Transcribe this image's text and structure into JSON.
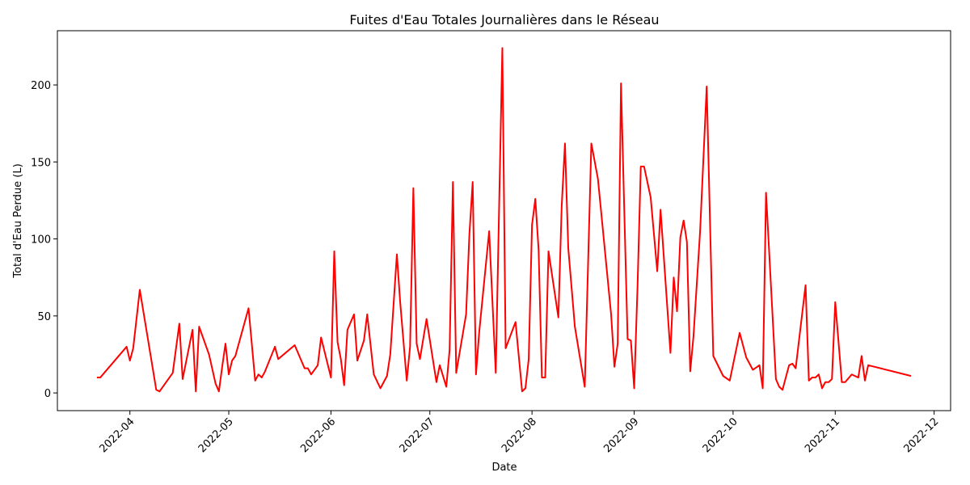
{
  "chart_data": {
    "type": "line",
    "title": "Fuites d'Eau Totales Journalières dans le Réseau",
    "xlabel": "Date",
    "ylabel": "Total d'Eau Perdue (L)",
    "x": [
      "2022-03-22",
      "2022-03-23",
      "2022-03-31",
      "2022-04-01",
      "2022-04-02",
      "2022-04-04",
      "2022-04-09",
      "2022-04-10",
      "2022-04-14",
      "2022-04-16",
      "2022-04-17",
      "2022-04-20",
      "2022-04-21",
      "2022-04-22",
      "2022-04-25",
      "2022-04-27",
      "2022-04-28",
      "2022-04-29",
      "2022-04-30",
      "2022-05-01",
      "2022-05-02",
      "2022-05-03",
      "2022-05-07",
      "2022-05-09",
      "2022-05-10",
      "2022-05-11",
      "2022-05-12",
      "2022-05-15",
      "2022-05-16",
      "2022-05-21",
      "2022-05-24",
      "2022-05-25",
      "2022-05-26",
      "2022-05-28",
      "2022-05-29",
      "2022-06-01",
      "2022-06-02",
      "2022-06-03",
      "2022-06-04",
      "2022-06-05",
      "2022-06-06",
      "2022-06-08",
      "2022-06-09",
      "2022-06-11",
      "2022-06-12",
      "2022-06-14",
      "2022-06-16",
      "2022-06-18",
      "2022-06-19",
      "2022-06-21",
      "2022-06-22",
      "2022-06-24",
      "2022-06-25",
      "2022-06-26",
      "2022-06-27",
      "2022-06-28",
      "2022-06-30",
      "2022-07-03",
      "2022-07-04",
      "2022-07-06",
      "2022-07-07",
      "2022-07-08",
      "2022-07-09",
      "2022-07-12",
      "2022-07-13",
      "2022-07-14",
      "2022-07-15",
      "2022-07-16",
      "2022-07-19",
      "2022-07-21",
      "2022-07-23",
      "2022-07-24",
      "2022-07-27",
      "2022-07-29",
      "2022-07-30",
      "2022-07-31",
      "2022-08-01",
      "2022-08-02",
      "2022-08-03",
      "2022-08-04",
      "2022-08-05",
      "2022-08-06",
      "2022-08-09",
      "2022-08-10",
      "2022-08-11",
      "2022-08-12",
      "2022-08-14",
      "2022-08-17",
      "2022-08-19",
      "2022-08-21",
      "2022-08-25",
      "2022-08-26",
      "2022-08-27",
      "2022-08-28",
      "2022-08-30",
      "2022-08-31",
      "2022-09-01",
      "2022-09-02",
      "2022-09-03",
      "2022-09-04",
      "2022-09-06",
      "2022-09-08",
      "2022-09-09",
      "2022-09-12",
      "2022-09-13",
      "2022-09-14",
      "2022-09-15",
      "2022-09-16",
      "2022-09-17",
      "2022-09-18",
      "2022-09-19",
      "2022-09-21",
      "2022-09-23",
      "2022-09-25",
      "2022-09-28",
      "2022-09-30",
      "2022-10-03",
      "2022-10-05",
      "2022-10-07",
      "2022-10-09",
      "2022-10-10",
      "2022-10-11",
      "2022-10-14",
      "2022-10-15",
      "2022-10-16",
      "2022-10-18",
      "2022-10-19",
      "2022-10-20",
      "2022-10-23",
      "2022-10-24",
      "2022-10-25",
      "2022-10-26",
      "2022-10-27",
      "2022-10-28",
      "2022-10-29",
      "2022-10-30",
      "2022-10-31",
      "2022-11-01",
      "2022-11-03",
      "2022-11-04",
      "2022-11-06",
      "2022-11-08",
      "2022-11-09",
      "2022-11-10",
      "2022-11-11",
      "2022-11-24"
    ],
    "series": [
      {
        "name": "Total d'Eau Perdue (L)",
        "color": "#ff0000",
        "values": [
          10,
          10,
          30,
          21,
          29,
          67,
          2,
          1,
          13,
          45,
          9,
          41,
          1,
          43,
          25,
          6,
          1,
          17,
          32,
          12,
          21,
          24,
          55,
          8,
          12,
          10,
          14,
          30,
          22,
          31,
          16,
          16,
          12,
          18,
          36,
          10,
          92,
          33,
          22,
          5,
          41,
          51,
          21,
          34,
          51,
          12,
          3,
          11,
          25,
          90,
          59,
          8,
          30,
          133,
          32,
          22,
          48,
          7,
          18,
          4,
          28,
          137,
          13,
          51,
          103,
          137,
          12,
          40,
          105,
          13,
          224,
          29,
          46,
          1,
          3,
          22,
          109,
          126,
          93,
          10,
          10,
          92,
          49,
          121,
          162,
          94,
          43,
          4,
          162,
          139,
          51,
          17,
          32,
          201,
          35,
          34,
          3,
          68,
          147,
          147,
          127,
          79,
          119,
          26,
          75,
          53,
          101,
          112,
          98,
          14,
          37,
          105,
          199,
          24,
          11,
          8,
          39,
          23,
          15,
          18,
          3,
          130,
          9,
          4,
          2,
          18,
          19,
          16,
          70,
          8,
          10,
          10,
          12,
          3,
          7,
          7,
          9,
          59,
          7,
          7,
          12,
          10,
          24,
          8,
          18,
          11
        ]
      }
    ],
    "xlim": [
      "2022-03-10",
      "2022-12-06"
    ],
    "xticks": [
      {
        "value": "2022-04-01",
        "label": "2022-04"
      },
      {
        "value": "2022-05-01",
        "label": "2022-05"
      },
      {
        "value": "2022-06-01",
        "label": "2022-06"
      },
      {
        "value": "2022-07-01",
        "label": "2022-07"
      },
      {
        "value": "2022-08-01",
        "label": "2022-08"
      },
      {
        "value": "2022-09-01",
        "label": "2022-09"
      },
      {
        "value": "2022-10-01",
        "label": "2022-10"
      },
      {
        "value": "2022-11-01",
        "label": "2022-11"
      },
      {
        "value": "2022-12-01",
        "label": "2022-12"
      }
    ],
    "ylim": [
      -11.5,
      235.2
    ],
    "yticks": [
      0,
      50,
      100,
      150,
      200
    ],
    "grid": false
  }
}
